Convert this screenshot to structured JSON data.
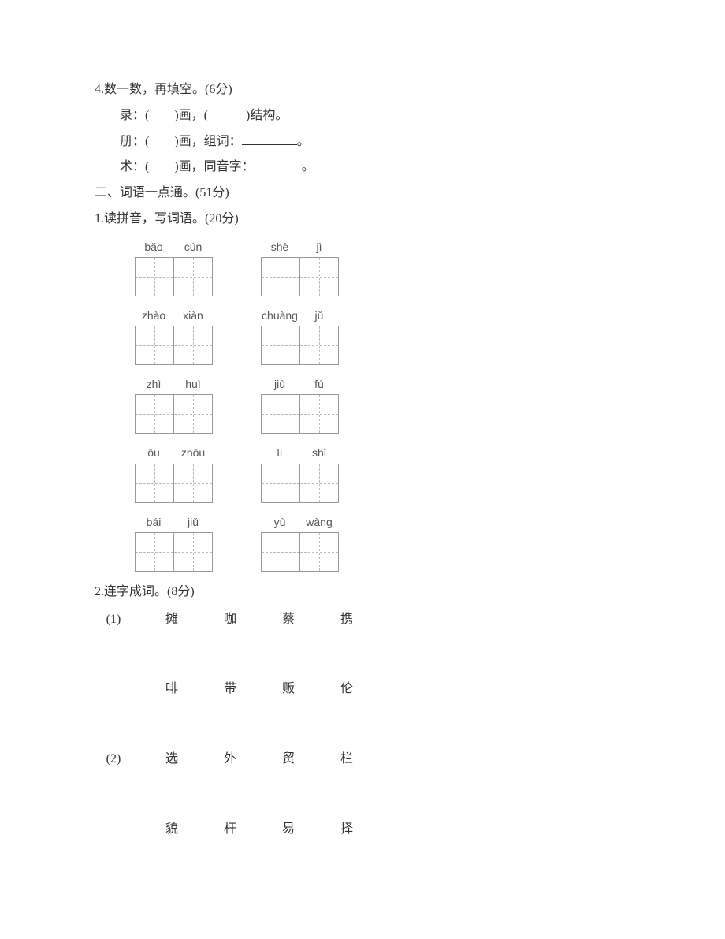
{
  "q4": {
    "title": "4.数一数，再填空。(6分)",
    "lines": [
      {
        "char": "录",
        "prefix": "：(　　)画，(　　　)结构。",
        "suffix_label": "",
        "has_blank": false
      },
      {
        "char": "册",
        "prefix": "：(　　)画，组词：",
        "suffix_label": "。",
        "has_blank": true,
        "blank_class": "blank-short"
      },
      {
        "char": "术",
        "prefix": "：(　　)画，同音字：",
        "suffix_label": "。",
        "has_blank": true,
        "blank_class": "blank-med"
      }
    ]
  },
  "section2": {
    "title": "二、词语一点通。(51分)"
  },
  "q1": {
    "title": "1.读拼音，写词语。(20分)",
    "rows": [
      {
        "left": [
          "bǎo",
          "cún"
        ],
        "right": [
          "shè",
          "jì"
        ]
      },
      {
        "left": [
          "zhào",
          "xiàn"
        ],
        "right": [
          "chuàng",
          "jǔ"
        ]
      },
      {
        "left": [
          "zhì",
          "huì"
        ],
        "right": [
          "jiù",
          "fú"
        ]
      },
      {
        "left": [
          "ōu",
          "zhōu"
        ],
        "right": [
          "lì",
          "shǐ"
        ]
      },
      {
        "left": [
          "bái",
          "jiǔ"
        ],
        "right": [
          "yù",
          "wàng"
        ]
      }
    ]
  },
  "q2": {
    "title": "2.连字成词。(8分)",
    "groups": [
      {
        "label": "(1)",
        "top": [
          "摊",
          "咖",
          "蔡",
          "携"
        ],
        "bottom": [
          "啡",
          "带",
          "贩",
          "伦"
        ]
      },
      {
        "label": "(2)",
        "top": [
          "选",
          "外",
          "贸",
          "栏"
        ],
        "bottom": [
          "貌",
          "杆",
          "易",
          "择"
        ]
      }
    ]
  }
}
